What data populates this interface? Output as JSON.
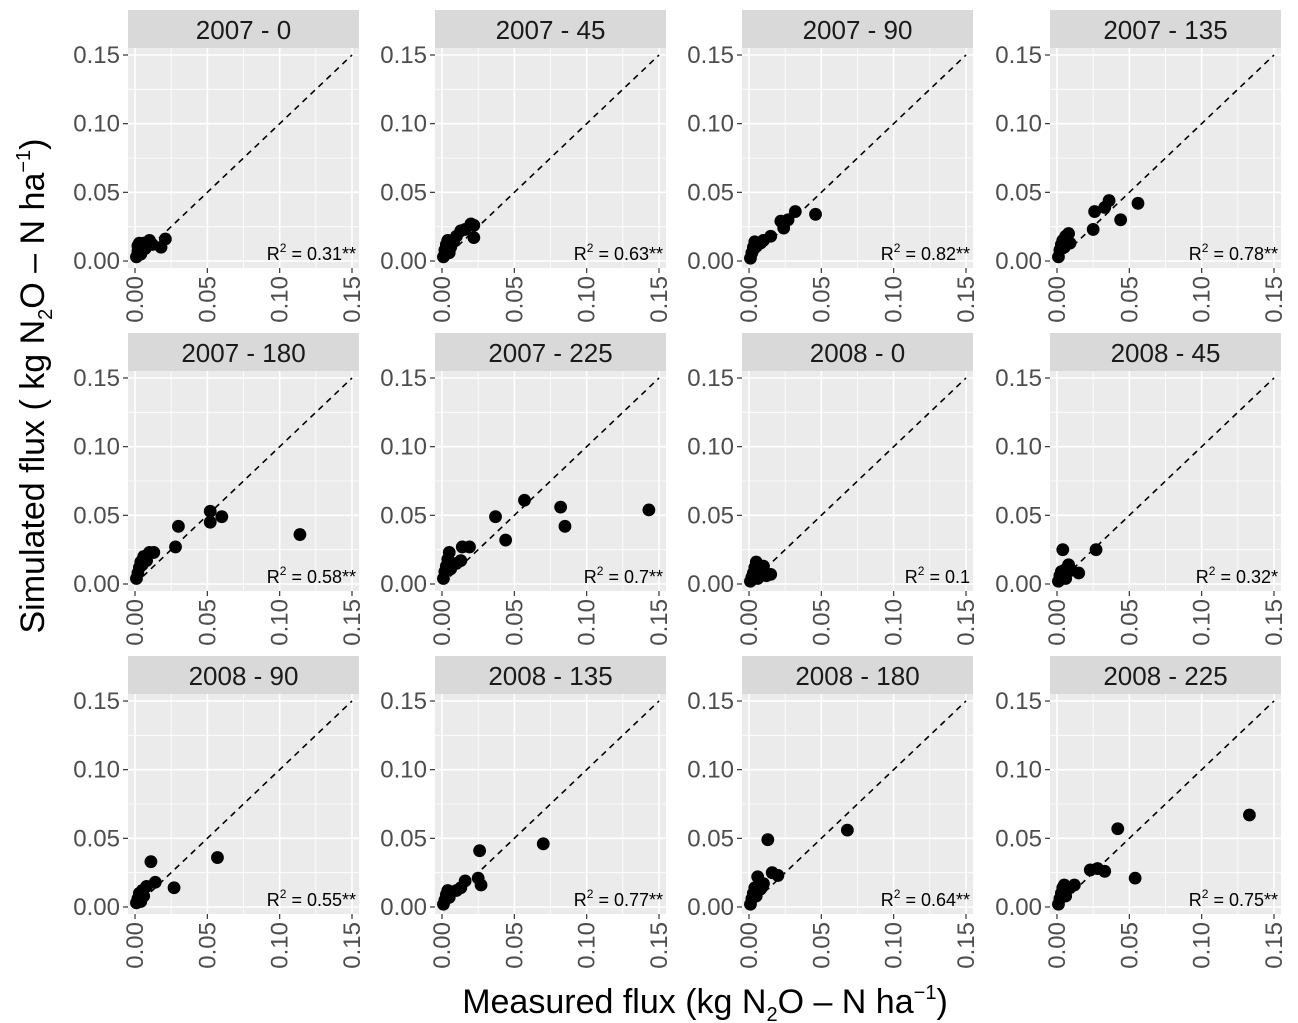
{
  "chart_data": {
    "type": "scatter",
    "xlabel": {
      "prefix": "Measured flux (kg N",
      "sub": "2",
      "mid": "O – N ha",
      "sup": "−1",
      "suffix": ")"
    },
    "ylabel": {
      "prefix": "Simulated flux ( kg N",
      "sub": "2",
      "mid": "O – N ha",
      "sup": "−1",
      "suffix": ")"
    },
    "xlim": [
      0,
      0.15
    ],
    "ylim": [
      0,
      0.15
    ],
    "x_ticks": [
      "0.00",
      "0.05",
      "0.10",
      "0.15"
    ],
    "y_ticks": [
      "0.00",
      "0.05",
      "0.10",
      "0.15"
    ],
    "reference_line": "1:1 dashed",
    "grid": true,
    "facets": [
      {
        "title": "2007 - 0",
        "r2_value": "0.31**",
        "points": [
          [
            0.001,
            0.003
          ],
          [
            0.002,
            0.007
          ],
          [
            0.002,
            0.011
          ],
          [
            0.003,
            0.013
          ],
          [
            0.004,
            0.005
          ],
          [
            0.005,
            0.01
          ],
          [
            0.006,
            0.013
          ],
          [
            0.007,
            0.009
          ],
          [
            0.008,
            0.012
          ],
          [
            0.01,
            0.015
          ],
          [
            0.012,
            0.012
          ],
          [
            0.018,
            0.01
          ],
          [
            0.021,
            0.016
          ]
        ]
      },
      {
        "title": "2007 - 45",
        "r2_value": "0.63**",
        "points": [
          [
            0.001,
            0.003
          ],
          [
            0.002,
            0.008
          ],
          [
            0.003,
            0.012
          ],
          [
            0.004,
            0.015
          ],
          [
            0.005,
            0.006
          ],
          [
            0.006,
            0.01
          ],
          [
            0.008,
            0.014
          ],
          [
            0.01,
            0.018
          ],
          [
            0.013,
            0.022
          ],
          [
            0.016,
            0.023
          ],
          [
            0.02,
            0.027
          ],
          [
            0.022,
            0.026
          ],
          [
            0.022,
            0.017
          ]
        ]
      },
      {
        "title": "2007 - 90",
        "r2_value": "0.82**",
        "points": [
          [
            0.001,
            0.002
          ],
          [
            0.002,
            0.006
          ],
          [
            0.003,
            0.01
          ],
          [
            0.004,
            0.014
          ],
          [
            0.005,
            0.011
          ],
          [
            0.008,
            0.013
          ],
          [
            0.01,
            0.015
          ],
          [
            0.015,
            0.018
          ],
          [
            0.022,
            0.029
          ],
          [
            0.024,
            0.024
          ],
          [
            0.027,
            0.03
          ],
          [
            0.032,
            0.036
          ],
          [
            0.046,
            0.034
          ]
        ]
      },
      {
        "title": "2007 - 135",
        "r2_value": "0.78**",
        "points": [
          [
            0.001,
            0.003
          ],
          [
            0.002,
            0.008
          ],
          [
            0.003,
            0.012
          ],
          [
            0.004,
            0.015
          ],
          [
            0.005,
            0.01
          ],
          [
            0.006,
            0.018
          ],
          [
            0.008,
            0.02
          ],
          [
            0.009,
            0.013
          ],
          [
            0.025,
            0.023
          ],
          [
            0.026,
            0.036
          ],
          [
            0.033,
            0.039
          ],
          [
            0.036,
            0.044
          ],
          [
            0.044,
            0.03
          ],
          [
            0.056,
            0.042
          ]
        ]
      },
      {
        "title": "2007 - 180",
        "r2_value": "0.58**",
        "points": [
          [
            0.001,
            0.004
          ],
          [
            0.002,
            0.008
          ],
          [
            0.003,
            0.012
          ],
          [
            0.004,
            0.016
          ],
          [
            0.005,
            0.014
          ],
          [
            0.006,
            0.02
          ],
          [
            0.008,
            0.017
          ],
          [
            0.01,
            0.023
          ],
          [
            0.013,
            0.023
          ],
          [
            0.028,
            0.027
          ],
          [
            0.03,
            0.042
          ],
          [
            0.052,
            0.045
          ],
          [
            0.052,
            0.053
          ],
          [
            0.06,
            0.049
          ],
          [
            0.114,
            0.036
          ]
        ]
      },
      {
        "title": "2007 - 225",
        "r2_value": "0.7**",
        "points": [
          [
            0.001,
            0.004
          ],
          [
            0.002,
            0.009
          ],
          [
            0.003,
            0.013
          ],
          [
            0.004,
            0.018
          ],
          [
            0.005,
            0.023
          ],
          [
            0.006,
            0.011
          ],
          [
            0.01,
            0.015
          ],
          [
            0.013,
            0.017
          ],
          [
            0.014,
            0.027
          ],
          [
            0.019,
            0.027
          ],
          [
            0.037,
            0.049
          ],
          [
            0.044,
            0.032
          ],
          [
            0.057,
            0.061
          ],
          [
            0.082,
            0.056
          ],
          [
            0.085,
            0.042
          ],
          [
            0.143,
            0.054
          ]
        ]
      },
      {
        "title": "2008 - 0",
        "r2_value": "0.1",
        "points": [
          [
            0.001,
            0.002
          ],
          [
            0.002,
            0.005
          ],
          [
            0.003,
            0.008
          ],
          [
            0.004,
            0.012
          ],
          [
            0.005,
            0.016
          ],
          [
            0.006,
            0.004
          ],
          [
            0.008,
            0.009
          ],
          [
            0.01,
            0.013
          ],
          [
            0.012,
            0.006
          ],
          [
            0.015,
            0.007
          ]
        ]
      },
      {
        "title": "2008 - 45",
        "r2_value": "0.32*",
        "points": [
          [
            0.001,
            0.002
          ],
          [
            0.002,
            0.006
          ],
          [
            0.003,
            0.009
          ],
          [
            0.004,
            0.025
          ],
          [
            0.005,
            0.01
          ],
          [
            0.006,
            0.004
          ],
          [
            0.008,
            0.014
          ],
          [
            0.01,
            0.01
          ],
          [
            0.015,
            0.008
          ],
          [
            0.027,
            0.025
          ]
        ]
      },
      {
        "title": "2008 - 90",
        "r2_value": "0.55**",
        "points": [
          [
            0.001,
            0.003
          ],
          [
            0.002,
            0.006
          ],
          [
            0.003,
            0.01
          ],
          [
            0.004,
            0.004
          ],
          [
            0.005,
            0.012
          ],
          [
            0.006,
            0.008
          ],
          [
            0.008,
            0.015
          ],
          [
            0.011,
            0.033
          ],
          [
            0.014,
            0.018
          ],
          [
            0.027,
            0.014
          ],
          [
            0.057,
            0.036
          ]
        ]
      },
      {
        "title": "2008 - 135",
        "r2_value": "0.77**",
        "points": [
          [
            0.001,
            0.002
          ],
          [
            0.002,
            0.005
          ],
          [
            0.003,
            0.009
          ],
          [
            0.004,
            0.012
          ],
          [
            0.005,
            0.007
          ],
          [
            0.006,
            0.011
          ],
          [
            0.01,
            0.012
          ],
          [
            0.013,
            0.014
          ],
          [
            0.016,
            0.019
          ],
          [
            0.025,
            0.021
          ],
          [
            0.026,
            0.041
          ],
          [
            0.027,
            0.016
          ],
          [
            0.07,
            0.046
          ]
        ]
      },
      {
        "title": "2008 - 180",
        "r2_value": "0.64**",
        "points": [
          [
            0.001,
            0.002
          ],
          [
            0.002,
            0.006
          ],
          [
            0.003,
            0.01
          ],
          [
            0.004,
            0.014
          ],
          [
            0.005,
            0.008
          ],
          [
            0.006,
            0.022
          ],
          [
            0.008,
            0.013
          ],
          [
            0.01,
            0.017
          ],
          [
            0.013,
            0.049
          ],
          [
            0.016,
            0.025
          ],
          [
            0.02,
            0.023
          ],
          [
            0.068,
            0.056
          ]
        ]
      },
      {
        "title": "2008 - 225",
        "r2_value": "0.75**",
        "points": [
          [
            0.001,
            0.002
          ],
          [
            0.002,
            0.006
          ],
          [
            0.003,
            0.01
          ],
          [
            0.004,
            0.014
          ],
          [
            0.005,
            0.016
          ],
          [
            0.006,
            0.008
          ],
          [
            0.009,
            0.014
          ],
          [
            0.012,
            0.016
          ],
          [
            0.023,
            0.027
          ],
          [
            0.028,
            0.028
          ],
          [
            0.033,
            0.026
          ],
          [
            0.042,
            0.057
          ],
          [
            0.054,
            0.021
          ],
          [
            0.133,
            0.067
          ]
        ]
      }
    ]
  }
}
